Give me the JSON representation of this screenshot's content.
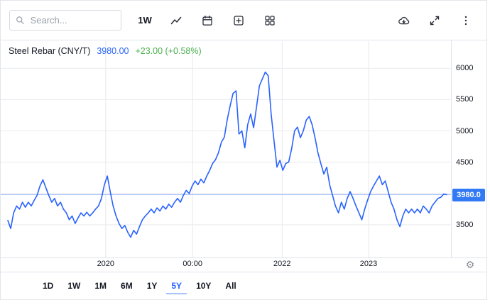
{
  "toolbar": {
    "search_placeholder": "Search...",
    "interval_label": "1W"
  },
  "header": {
    "title": "Steel Rebar (CNY/T)",
    "price": "3980.00",
    "change": "+23.00 (+0.58%)"
  },
  "price_scale": {
    "badge": "3980.0"
  },
  "colors": {
    "accent": "#2962ff",
    "line": "#2962ff",
    "up_green": "#4caf50",
    "badge_bg": "#3179f5",
    "grid": "#e8eaee",
    "price_line": "#9cb9f7"
  },
  "ranges": [
    {
      "label": "1D",
      "active": false
    },
    {
      "label": "1W",
      "active": false
    },
    {
      "label": "1M",
      "active": false
    },
    {
      "label": "6M",
      "active": false
    },
    {
      "label": "1Y",
      "active": false
    },
    {
      "label": "5Y",
      "active": true
    },
    {
      "label": "10Y",
      "active": false
    },
    {
      "label": "All",
      "active": false
    }
  ],
  "chart_data": {
    "type": "line",
    "title": "Steel Rebar (CNY/T)",
    "unit": "CNY/T",
    "last_price": 3980.0,
    "change_abs": 23.0,
    "change_pct": 0.58,
    "ylim": [
      3000,
      6400
    ],
    "y_ticks": [
      6000,
      5500,
      5000,
      4500,
      3500
    ],
    "grid_values": [
      3500,
      4000,
      4500,
      5000,
      5500,
      6000
    ],
    "current_price": 3980,
    "x_ticks": [
      {
        "label": "2020",
        "pos": 0.223
      },
      {
        "label": "00:00",
        "pos": 0.421
      },
      {
        "label": "2022",
        "pos": 0.625
      },
      {
        "label": "2023",
        "pos": 0.822
      }
    ],
    "x_range_note": "weekly data, approx late 2018 to late 2023",
    "values": [
      3570,
      3440,
      3690,
      3800,
      3750,
      3860,
      3780,
      3860,
      3800,
      3890,
      3970,
      4120,
      4220,
      4090,
      3970,
      3860,
      3920,
      3800,
      3860,
      3750,
      3690,
      3580,
      3640,
      3520,
      3610,
      3690,
      3640,
      3700,
      3640,
      3690,
      3750,
      3800,
      3920,
      4140,
      4280,
      4030,
      3800,
      3640,
      3520,
      3440,
      3490,
      3380,
      3300,
      3410,
      3350,
      3470,
      3580,
      3640,
      3690,
      3750,
      3690,
      3770,
      3720,
      3800,
      3750,
      3830,
      3780,
      3860,
      3920,
      3860,
      3970,
      4050,
      4000,
      4120,
      4200,
      4140,
      4230,
      4170,
      4280,
      4370,
      4480,
      4540,
      4650,
      4820,
      4900,
      5180,
      5400,
      5600,
      5640,
      4950,
      5000,
      4730,
      5100,
      5270,
      5050,
      5380,
      5720,
      5830,
      5940,
      5880,
      5270,
      4840,
      4420,
      4530,
      4370,
      4480,
      4500,
      4710,
      5000,
      5060,
      4890,
      5000,
      5170,
      5230,
      5100,
      4890,
      4650,
      4480,
      4310,
      4420,
      4140,
      3970,
      3800,
      3690,
      3860,
      3750,
      3920,
      4030,
      3920,
      3800,
      3690,
      3580,
      3750,
      3900,
      4030,
      4120,
      4200,
      4280,
      4140,
      4200,
      4030,
      3860,
      3750,
      3580,
      3470,
      3640,
      3750,
      3690,
      3750,
      3690,
      3750,
      3690,
      3800,
      3750,
      3690,
      3800,
      3860,
      3920,
      3940,
      3990,
      3980
    ]
  }
}
